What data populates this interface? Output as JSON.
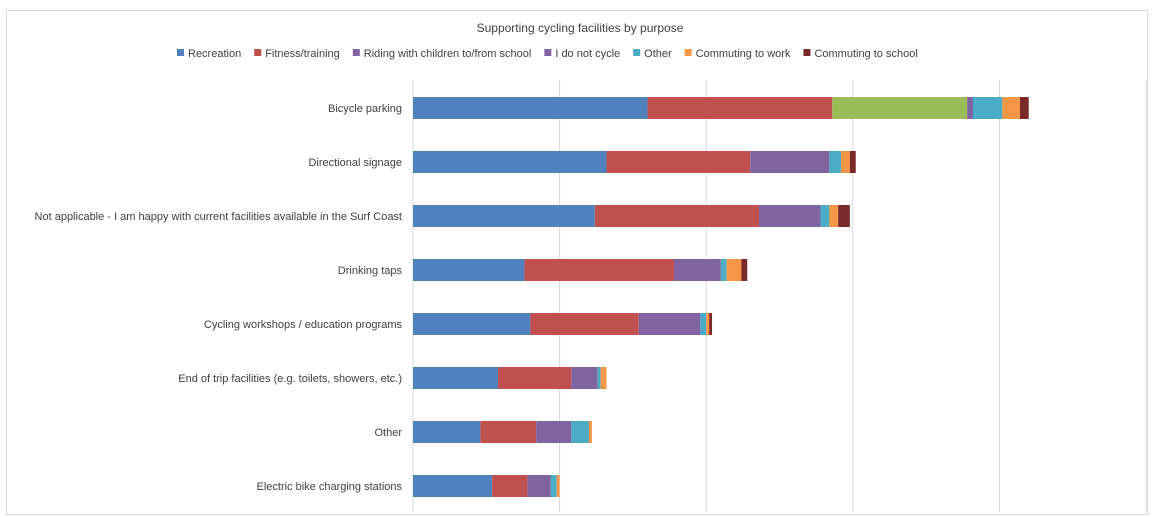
{
  "chart_data": {
    "type": "bar",
    "orientation": "horizontal",
    "stacked": true,
    "title": "Supporting cycling facilities by purpose",
    "xlabel": "",
    "ylabel": "",
    "grid": true,
    "legend_position": "top",
    "categories": [
      "Bicycle parking",
      "Directional signage",
      "Not applicable - I am happy with current facilities available in the Surf Coast",
      "Drinking taps",
      "Cycling workshops / education programs",
      "End of trip facilities (e.g. toilets, showers, etc.)",
      "Other",
      "Electric bike charging stations"
    ],
    "series": [
      {
        "name": "Recreation",
        "color": "#4f81bd",
        "values": [
          80,
          66,
          62,
          38,
          40,
          29,
          23,
          27
        ]
      },
      {
        "name": "Fitness/training",
        "color": "#c0504d",
        "values": [
          63,
          49,
          56,
          51,
          37,
          25,
          19,
          12
        ]
      },
      {
        "name": "",
        "color": "#9bbb59",
        "values": [
          46,
          0,
          0,
          0,
          0,
          0,
          0,
          0
        ]
      },
      {
        "name": "Riding with children to/from school",
        "color": "#8064a2",
        "values": [
          2,
          27,
          21,
          16,
          21,
          9,
          12,
          8
        ]
      },
      {
        "name": "I do not cycle",
        "color": "#8064a2",
        "values": [
          0,
          0,
          0,
          0,
          0,
          0,
          0,
          0
        ]
      },
      {
        "name": "Other",
        "color": "#4bacc6",
        "values": [
          10,
          4,
          3,
          2,
          2,
          1,
          6,
          2
        ]
      },
      {
        "name": "Commuting to work",
        "color": "#f79646",
        "values": [
          6,
          3,
          3,
          5,
          1,
          2,
          1,
          1
        ]
      },
      {
        "name": "Commuting to school",
        "color": "#7b2a2a",
        "values": [
          3,
          2,
          4,
          2,
          1,
          0,
          0,
          0
        ]
      }
    ],
    "xlim": [
      0,
      250
    ],
    "gridline_step": 50
  }
}
